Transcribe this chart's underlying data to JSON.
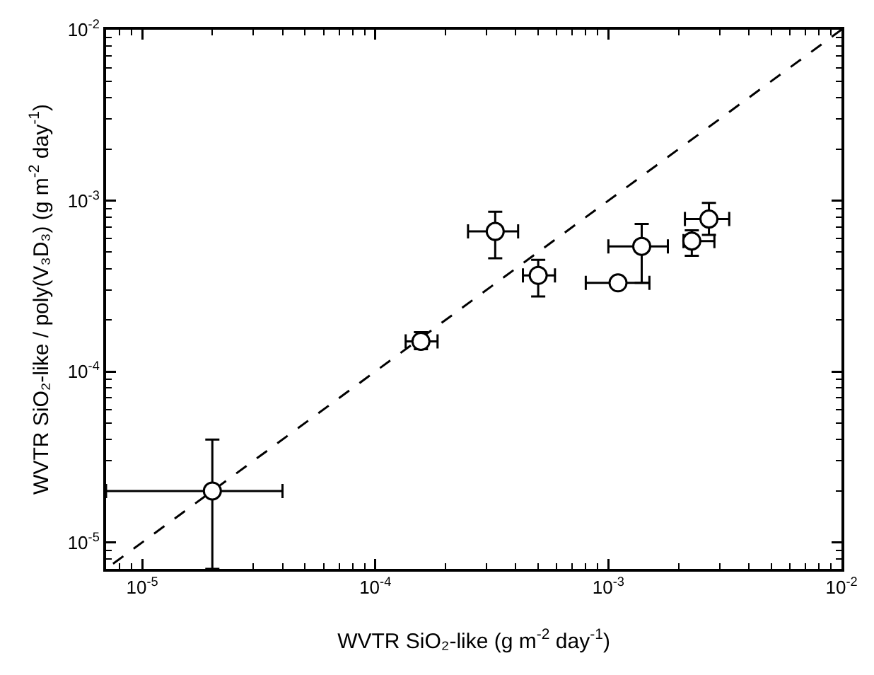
{
  "chart_data": {
    "type": "scatter",
    "xlabel": "WVTR SiO₂-like (g m$^{-2}$ day$^{-1}$)",
    "ylabel": "WVTR SiO₂-like / poly(V₃D₃) (g m$^{-2}$ day$^{-1}$)",
    "log": "xy",
    "grid": false,
    "marker": "circle",
    "xlim": [
      7e-06,
      0.01
    ],
    "ylim": [
      7e-06,
      0.01
    ],
    "xticks": [
      {
        "value": 1e-05,
        "label": "10$^{-5}$"
      },
      {
        "value": 0.0001,
        "label": "10$^{-4}$"
      },
      {
        "value": 0.001,
        "label": "10$^{-3}$"
      },
      {
        "value": 0.01,
        "label": "10$^{-2}$"
      }
    ],
    "yticks": [
      {
        "value": 1e-05,
        "label": "10$^{-5}$"
      },
      {
        "value": 0.0001,
        "label": "10$^{-4}$"
      },
      {
        "value": 0.001,
        "label": "10$^{-3}$"
      },
      {
        "value": 0.01,
        "label": "10$^{-2}$"
      }
    ],
    "series": [
      {
        "color": "#000000",
        "x": [
          2e-05,
          0.000157,
          0.000327,
          0.0005,
          0.0011,
          0.00139,
          0.00228,
          0.0027
        ],
        "values": [
          2e-05,
          0.00015,
          0.00066,
          0.000365,
          0.00033,
          0.00054,
          0.00058,
          0.00078
        ],
        "xerrors": [
          [
            7e-06,
            4e-05
          ],
          [
            0.000135,
            0.000185
          ],
          [
            0.00025,
            0.00041
          ],
          [
            0.00043,
            0.00059
          ],
          [
            0.0008,
            0.0015
          ],
          [
            0.001,
            0.0018
          ],
          [
            0.0021,
            0.00285
          ],
          [
            0.00213,
            0.0033
          ]
        ],
        "errors": [
          [
            7e-06,
            4e-05
          ],
          [
            0.000135,
            0.00017
          ],
          [
            0.00046,
            0.00086
          ],
          [
            0.000275,
            0.00045
          ],
          null,
          [
            0.00033,
            0.00073
          ],
          [
            0.000475,
            0.00067
          ],
          [
            0.00063,
            0.00097
          ]
        ]
      },
      {
        "type": "line",
        "color": "#000000",
        "line_style": "dashed",
        "marker": "none",
        "x": [
          7.5e-06,
          0.01
        ],
        "values": [
          7.5e-06,
          0.01
        ]
      }
    ]
  }
}
